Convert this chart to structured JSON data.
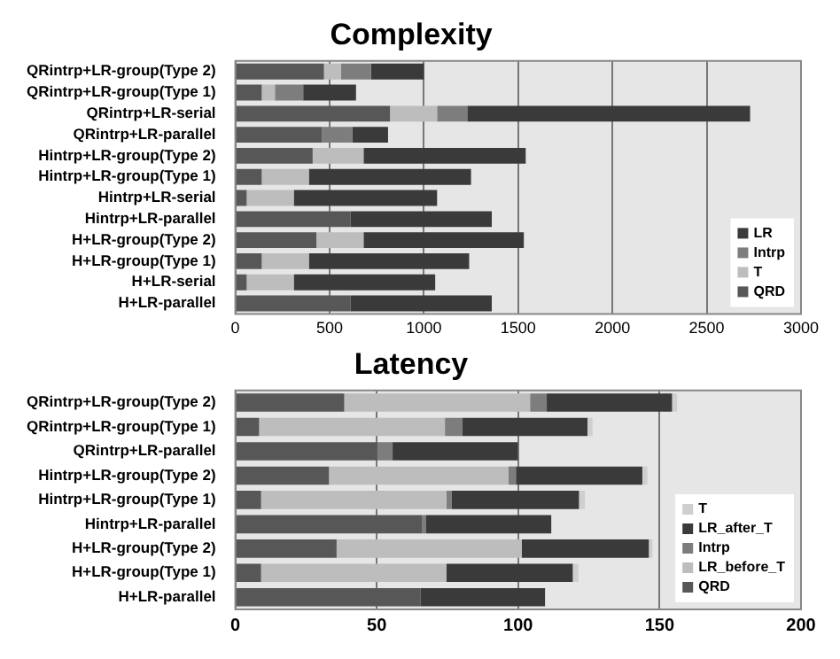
{
  "chart_data": [
    {
      "type": "bar",
      "title": "Complexity",
      "orientation": "horizontal",
      "stacked": true,
      "categories": [
        "QRintrp+LR-group(Type 2)",
        "QRintrp+LR-group(Type 1)",
        "QRintrp+LR-serial",
        "QRintrp+LR-parallel",
        "Hintrp+LR-group(Type 2)",
        "Hintrp+LR-group(Type 1)",
        "Hintrp+LR-serial",
        "Hintrp+LR-parallel",
        "H+LR-group(Type 2)",
        "H+LR-group(Type 1)",
        "H+LR-serial",
        "H+LR-parallel"
      ],
      "series": [
        {
          "name": "QRD",
          "color": "#575757",
          "values": [
            470,
            140,
            820,
            460,
            410,
            140,
            60,
            610,
            430,
            140,
            60,
            610
          ]
        },
        {
          "name": "T",
          "color": "#bdbdbd",
          "values": [
            90,
            70,
            250,
            0,
            270,
            250,
            250,
            0,
            250,
            250,
            250,
            0
          ]
        },
        {
          "name": "Intrp",
          "color": "#7d7d7d",
          "values": [
            160,
            150,
            160,
            160,
            0,
            0,
            0,
            0,
            0,
            0,
            0,
            0
          ]
        },
        {
          "name": "LR",
          "color": "#3a3a3a",
          "values": [
            280,
            280,
            1500,
            190,
            860,
            860,
            760,
            750,
            850,
            850,
            750,
            750
          ]
        }
      ],
      "xlim": [
        0,
        3000
      ],
      "xticks": [
        0,
        500,
        1000,
        1500,
        2000,
        2500,
        3000
      ],
      "grid": "x",
      "legend": "bottom right"
    },
    {
      "type": "bar",
      "title": "Latency",
      "orientation": "horizontal",
      "stacked": true,
      "categories": [
        "QRintrp+LR-group(Type 2)",
        "QRintrp+LR-group(Type 1)",
        "QRintrp+LR-parallel",
        "Hintrp+LR-group(Type 2)",
        "Hintrp+LR-group(Type 1)",
        "Hintrp+LR-parallel",
        "H+LR-group(Type 2)",
        "H+LR-group(Type 1)",
        "H+LR-parallel"
      ],
      "series": [
        {
          "name": "QRD",
          "color": "#575757",
          "values": [
            38.5,
            8.4,
            50.2,
            33.1,
            9.1,
            66.1,
            35.8,
            9.1,
            65.4
          ]
        },
        {
          "name": "LR_before_T",
          "color": "#bdbdbd",
          "values": [
            65.7,
            65.7,
            0,
            63.4,
            65.5,
            0,
            65.5,
            65.5,
            0
          ]
        },
        {
          "name": "Intrp",
          "color": "#7d7d7d",
          "values": [
            5.9,
            6.2,
            5.4,
            2.7,
            1.8,
            1.2,
            0,
            0,
            0
          ]
        },
        {
          "name": "LR_after_T",
          "color": "#3a3a3a",
          "values": [
            44.3,
            44.2,
            44.3,
            44.7,
            45.1,
            44.4,
            44.9,
            44.7,
            44.1
          ]
        },
        {
          "name": "T",
          "color": "#cfcfcf",
          "values": [
            1.8,
            1.8,
            0,
            1.8,
            2.1,
            0,
            1.3,
            2,
            0
          ]
        }
      ],
      "xlim": [
        0,
        200
      ],
      "xticks": [
        0,
        50,
        100,
        150,
        200
      ],
      "grid": "x",
      "legend": "bottom right"
    }
  ]
}
